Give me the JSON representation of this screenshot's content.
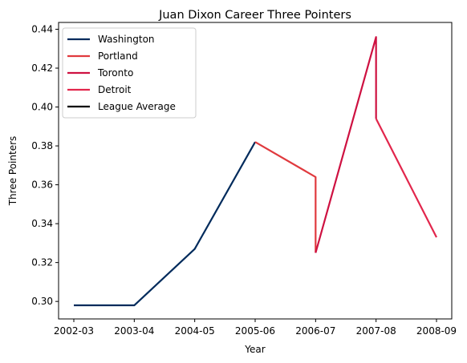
{
  "chart_data": {
    "type": "line",
    "title": "Juan Dixon Career Three Pointers",
    "xlabel": "Year",
    "ylabel": "Three Pointers",
    "categories": [
      "2002-03",
      "2003-04",
      "2004-05",
      "2005-06",
      "2006-07",
      "2007-08",
      "2008-09"
    ],
    "ylim": [
      0.291,
      0.4435
    ],
    "yticks": [
      0.3,
      0.32,
      0.34,
      0.36,
      0.38,
      0.4,
      0.42,
      0.44
    ],
    "ytick_labels": [
      "0.30",
      "0.32",
      "0.34",
      "0.36",
      "0.38",
      "0.40",
      "0.42",
      "0.44"
    ],
    "grid": false,
    "legend_position": "top-left",
    "series": [
      {
        "name": "Washington",
        "color": "#002b5c",
        "points": [
          {
            "x": "2002-03",
            "y": 0.298
          },
          {
            "x": "2003-04",
            "y": 0.298
          },
          {
            "x": "2004-05",
            "y": 0.327
          },
          {
            "x": "2005-06",
            "y": 0.382
          }
        ]
      },
      {
        "name": "Portland",
        "color": "#e03a3e",
        "points": [
          {
            "x": "2005-06",
            "y": 0.382
          },
          {
            "x": "2006-07",
            "y": 0.364
          },
          {
            "x": "2006-07",
            "y": 0.325
          }
        ]
      },
      {
        "name": "Toronto",
        "color": "#ce1141",
        "points": [
          {
            "x": "2006-07",
            "y": 0.325
          },
          {
            "x": "2007-08",
            "y": 0.436
          },
          {
            "x": "2007-08",
            "y": 0.394
          }
        ]
      },
      {
        "name": "Detroit",
        "color": "#e2264c",
        "points": [
          {
            "x": "2007-08",
            "y": 0.394
          },
          {
            "x": "2008-09",
            "y": 0.333
          }
        ]
      },
      {
        "name": "League Average",
        "color": "#000000",
        "points": []
      }
    ]
  }
}
